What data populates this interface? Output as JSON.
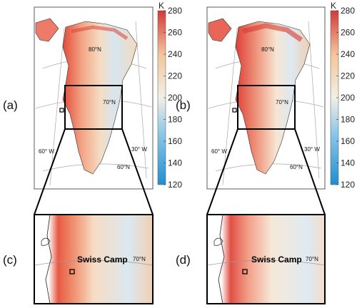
{
  "panels": {
    "a": "(a)",
    "b": "(b)",
    "c": "(c)",
    "d": "(d)"
  },
  "map_labels": {
    "lat80": "80°N",
    "lat70": "70°N",
    "lat60": "60°N",
    "lon60": "60° W",
    "lon30": "30° W",
    "site": "Swiss Camp"
  },
  "colorbar": {
    "unit": "K",
    "ticks": [
      "280",
      "260",
      "240",
      "220",
      "200",
      "180",
      "160",
      "140",
      "120"
    ],
    "range": [
      120,
      280
    ],
    "colors": [
      "#1f8fd0",
      "#8fc8e8",
      "#f1f0e4",
      "#f4c49a",
      "#d23a3a"
    ]
  }
}
